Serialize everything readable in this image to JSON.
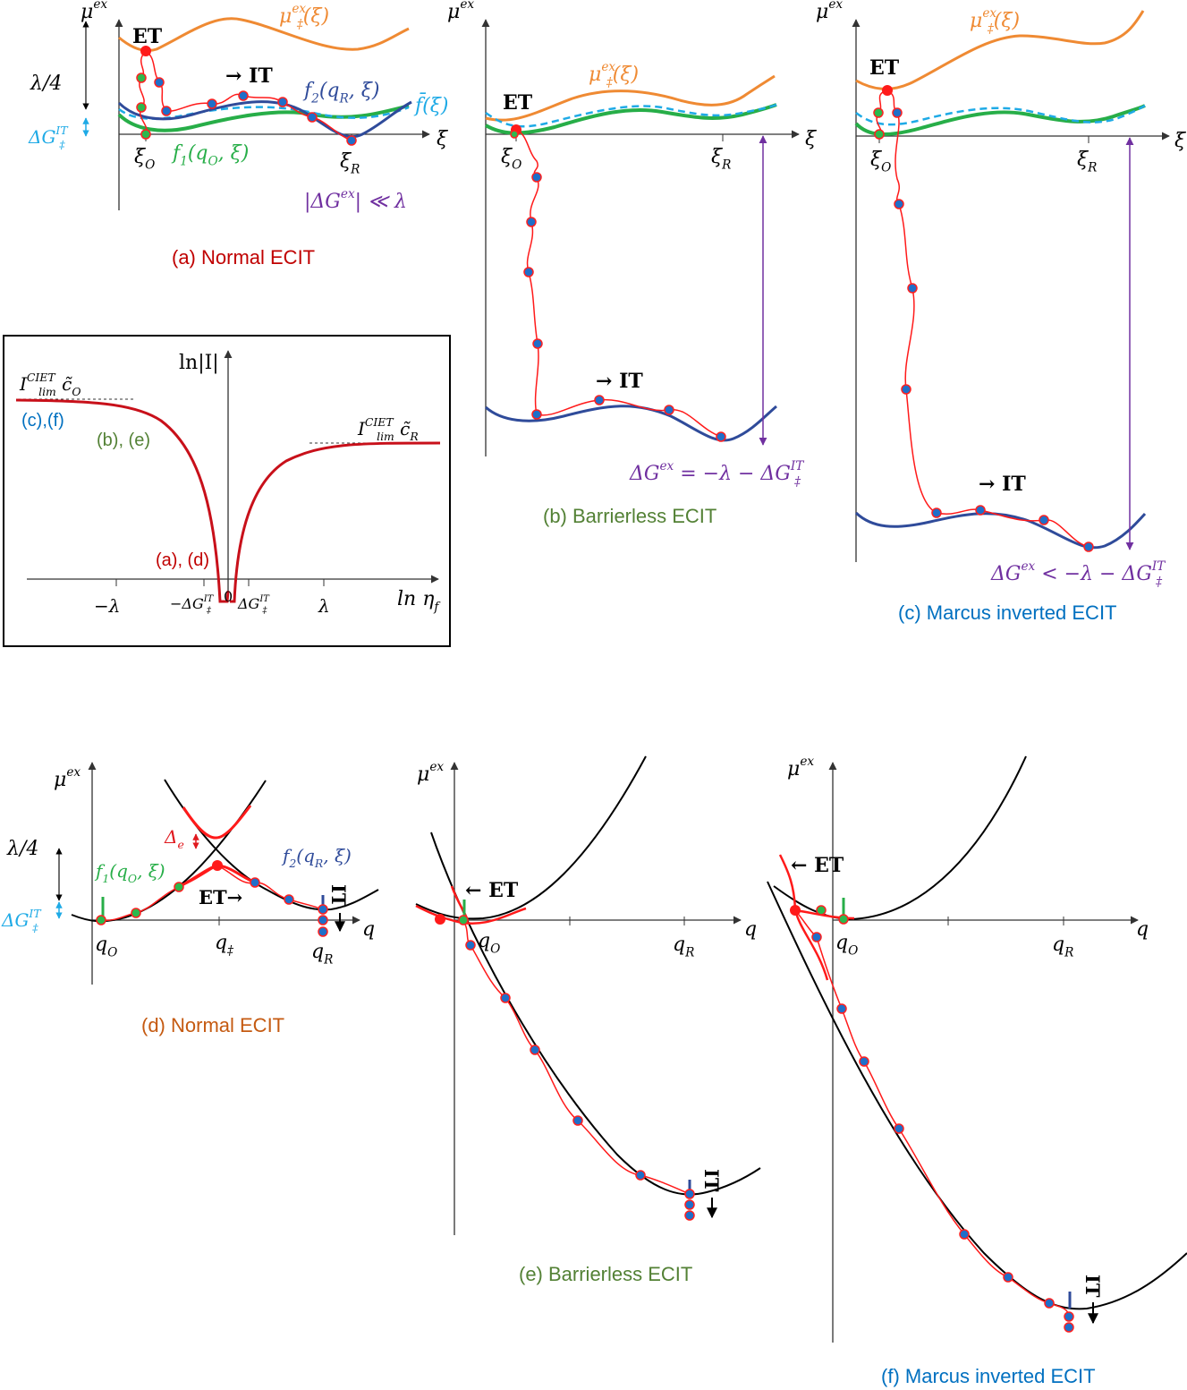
{
  "colors": {
    "orange": "#ef8a33",
    "blue": "#2f4b9a",
    "green": "#27ae48",
    "cyan": "#1eaae6",
    "red": "#e0191e",
    "purple": "#7030a0",
    "caption_red": "#c00000",
    "caption_green": "#538135",
    "caption_blue": "#0070c0",
    "caption_orange": "#c55a11"
  },
  "labels": {
    "mu_ex": [
      {
        "t": "μ"
      },
      {
        "t": "ex",
        "pos": "sup"
      }
    ],
    "mu_ts": [
      {
        "t": "μ"
      },
      {
        "t": "ex",
        "pos": "sup"
      },
      {
        "t": "‡",
        "pos": "sub",
        "stack": true
      },
      {
        "t": "(ξ)"
      }
    ],
    "et": [
      {
        "t": "ET"
      }
    ],
    "it": [
      {
        "t": "→ IT"
      }
    ],
    "f2": [
      {
        "t": "f"
      },
      {
        "t": "2",
        "pos": "sub"
      },
      {
        "t": "(q"
      },
      {
        "t": "R",
        "pos": "sub"
      },
      {
        "t": ", ξ)"
      }
    ],
    "f1": [
      {
        "t": "f"
      },
      {
        "t": "1",
        "pos": "sub"
      },
      {
        "t": "(q"
      },
      {
        "t": "O",
        "pos": "sub"
      },
      {
        "t": ", ξ)"
      }
    ],
    "fbar": [
      {
        "t": "f̄(ξ)"
      }
    ],
    "lambda4": [
      {
        "t": "λ/4"
      }
    ],
    "dg_it": [
      {
        "t": "ΔG"
      },
      {
        "t": "IT",
        "pos": "sup"
      },
      {
        "t": "‡",
        "pos": "sub",
        "stack": true
      }
    ],
    "xi": [
      {
        "t": "ξ"
      }
    ],
    "xi_o": [
      {
        "t": "ξ"
      },
      {
        "t": "O",
        "pos": "sub"
      }
    ],
    "xi_r": [
      {
        "t": "ξ"
      },
      {
        "t": "R",
        "pos": "sub"
      }
    ],
    "dgex_a": [
      {
        "t": "|ΔG"
      },
      {
        "t": "ex",
        "pos": "sup"
      },
      {
        "t": "| ≪ λ"
      }
    ],
    "dgex_b": [
      {
        "t": "ΔG"
      },
      {
        "t": "ex",
        "pos": "sup"
      },
      {
        "t": " = −λ − ΔG"
      },
      {
        "t": "IT",
        "pos": "sup"
      },
      {
        "t": "‡",
        "pos": "sub",
        "stack": true
      }
    ],
    "dgex_c": [
      {
        "t": "ΔG"
      },
      {
        "t": "ex",
        "pos": "sup"
      },
      {
        "t": " < −λ − ΔG"
      },
      {
        "t": "IT",
        "pos": "sup"
      },
      {
        "t": "‡",
        "pos": "sub",
        "stack": true
      }
    ],
    "ln_i": [
      {
        "t": "ln|I|"
      }
    ],
    "ilim_o": [
      {
        "t": "I"
      },
      {
        "t": "CIET",
        "pos": "sup"
      },
      {
        "t": "lim",
        "pos": "sub",
        "stack": true
      },
      {
        "t": "  c̃"
      },
      {
        "t": "O",
        "pos": "sub"
      }
    ],
    "ilim_r": [
      {
        "t": "I"
      },
      {
        "t": "CIET",
        "pos": "sup"
      },
      {
        "t": "lim",
        "pos": "sub",
        "stack": true
      },
      {
        "t": "  c̃"
      },
      {
        "t": "R",
        "pos": "sub"
      }
    ],
    "cf": [
      {
        "t": "(c),(f)"
      }
    ],
    "be": [
      {
        "t": "(b), (e)"
      }
    ],
    "ad": [
      {
        "t": "(a), (d)"
      }
    ],
    "neg_lambda": [
      {
        "t": "−λ"
      }
    ],
    "neg_dg": [
      {
        "t": "−ΔG"
      },
      {
        "t": "IT",
        "pos": "sup"
      },
      {
        "t": "‡",
        "pos": "sub",
        "stack": true
      }
    ],
    "zero": [
      {
        "t": "0"
      }
    ],
    "pos_dg": [
      {
        "t": "ΔG"
      },
      {
        "t": "IT",
        "pos": "sup"
      },
      {
        "t": "‡",
        "pos": "sub",
        "stack": true
      }
    ],
    "lambda": [
      {
        "t": "λ"
      }
    ],
    "ln_eta": [
      {
        "t": "ln η"
      },
      {
        "t": "f",
        "pos": "sub"
      }
    ],
    "delta_e": [
      {
        "t": "Δ"
      },
      {
        "t": "e",
        "pos": "sub"
      }
    ],
    "et_right": [
      {
        "t": "ET→"
      }
    ],
    "et_left": [
      {
        "t": "← ET"
      }
    ],
    "it_vert": [
      {
        "t": "IT"
      }
    ],
    "q": [
      {
        "t": "q"
      }
    ],
    "q_o": [
      {
        "t": "q"
      },
      {
        "t": "O",
        "pos": "sub"
      }
    ],
    "q_ts": [
      {
        "t": "q"
      },
      {
        "t": "‡",
        "pos": "sub"
      }
    ],
    "q_r": [
      {
        "t": "q"
      },
      {
        "t": "R",
        "pos": "sub"
      }
    ]
  },
  "captions": {
    "a": "(a) Normal ECIT",
    "b": "(b)  Barrierless ECIT",
    "c": "(c)  Marcus inverted ECIT",
    "d": "(d)  Normal ECIT",
    "e": "(e)  Barrierless ECIT",
    "f": "(f)  Marcus inverted ECIT"
  }
}
